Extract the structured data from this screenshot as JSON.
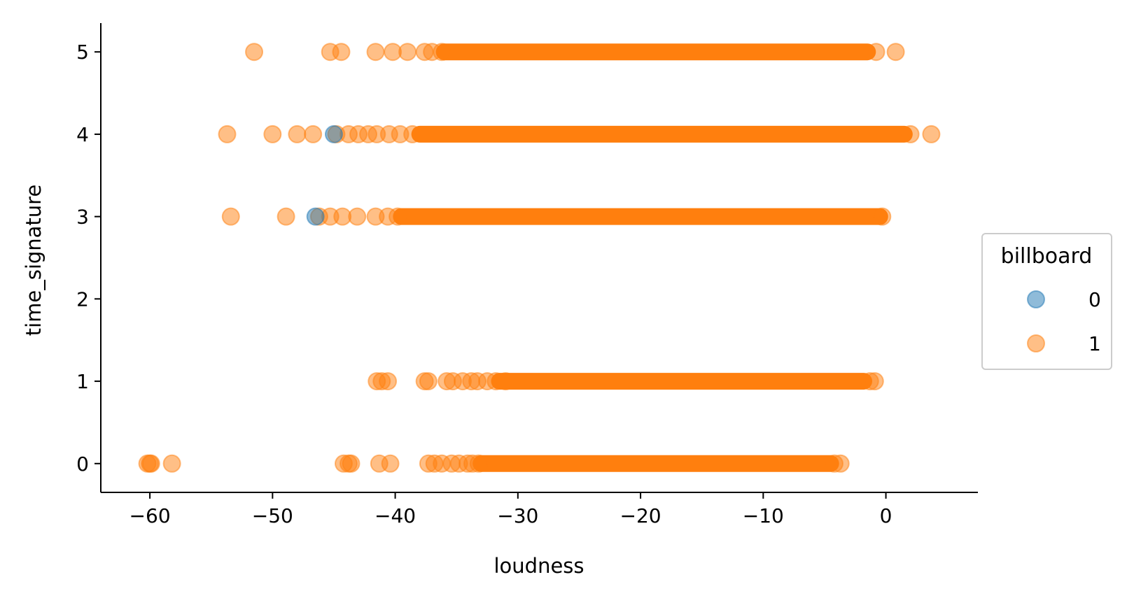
{
  "chart_data": {
    "type": "scatter",
    "xlabel": "loudness",
    "ylabel": "time_signature",
    "xlim": [
      -64,
      7.5
    ],
    "ylim": [
      -0.35,
      5.35
    ],
    "xticks": [
      -60,
      -50,
      -40,
      -30,
      -20,
      -10,
      0
    ],
    "xtick_labels": [
      "−60",
      "−50",
      "−40",
      "−30",
      "−20",
      "−10",
      "0"
    ],
    "yticks": [
      0,
      1,
      2,
      3,
      4,
      5
    ],
    "ytick_labels": [
      "0",
      "1",
      "2",
      "3",
      "4",
      "5"
    ],
    "grid": false,
    "legend": {
      "title": "billboard",
      "placement": "outside-right"
    },
    "series": [
      {
        "name": "0",
        "color": "#1f77b4",
        "points": [
          [
            -45.0,
            4
          ],
          [
            -46.5,
            3
          ]
        ]
      },
      {
        "name": "1",
        "color": "#ff7f0e",
        "points": [
          [
            -51.5,
            5
          ],
          [
            -45.3,
            5
          ],
          [
            -44.4,
            5
          ],
          [
            -41.6,
            5
          ],
          [
            -40.2,
            5
          ],
          [
            -39.0,
            5
          ],
          [
            -37.6,
            5
          ],
          [
            -37.0,
            5
          ],
          [
            -36.2,
            5
          ],
          [
            -0.8,
            5
          ],
          [
            0.8,
            5
          ],
          [
            -53.7,
            4
          ],
          [
            -50.0,
            4
          ],
          [
            -48.0,
            4
          ],
          [
            -46.7,
            4
          ],
          [
            -44.8,
            4
          ],
          [
            -43.8,
            4
          ],
          [
            -43.0,
            4
          ],
          [
            -42.2,
            4
          ],
          [
            -41.5,
            4
          ],
          [
            -40.5,
            4
          ],
          [
            -39.6,
            4
          ],
          [
            -38.6,
            4
          ],
          [
            2.0,
            4
          ],
          [
            3.7,
            4
          ],
          [
            -53.4,
            3
          ],
          [
            -48.9,
            3
          ],
          [
            -46.2,
            3
          ],
          [
            -45.3,
            3
          ],
          [
            -44.3,
            3
          ],
          [
            -43.1,
            3
          ],
          [
            -41.6,
            3
          ],
          [
            -40.6,
            3
          ],
          [
            -39.8,
            3
          ],
          [
            -0.3,
            3
          ],
          [
            -41.5,
            1
          ],
          [
            -41.1,
            1
          ],
          [
            -40.6,
            1
          ],
          [
            -37.6,
            1
          ],
          [
            -37.3,
            1
          ],
          [
            -35.8,
            1
          ],
          [
            -35.3,
            1
          ],
          [
            -34.5,
            1
          ],
          [
            -33.8,
            1
          ],
          [
            -33.3,
            1
          ],
          [
            -32.5,
            1
          ],
          [
            -31.8,
            1
          ],
          [
            -31.0,
            1
          ],
          [
            -1.3,
            1
          ],
          [
            -0.9,
            1
          ],
          [
            -60.0,
            0
          ],
          [
            -60.2,
            0
          ],
          [
            -59.9,
            0
          ],
          [
            -58.2,
            0
          ],
          [
            -44.2,
            0
          ],
          [
            -43.8,
            0
          ],
          [
            -43.6,
            0
          ],
          [
            -41.3,
            0
          ],
          [
            -40.4,
            0
          ],
          [
            -37.3,
            0
          ],
          [
            -36.8,
            0
          ],
          [
            -36.2,
            0
          ],
          [
            -35.4,
            0
          ],
          [
            -34.8,
            0
          ],
          [
            -34.1,
            0
          ],
          [
            -33.7,
            0
          ],
          [
            -33.2,
            0
          ],
          [
            -3.7,
            0
          ],
          [
            -4.2,
            0
          ]
        ],
        "bands": [
          {
            "y": 5,
            "x_start": -36.0,
            "x_end": -1.5
          },
          {
            "y": 4,
            "x_start": -38.0,
            "x_end": 1.5
          },
          {
            "y": 3,
            "x_start": -39.5,
            "x_end": -0.5
          },
          {
            "y": 1,
            "x_start": -31.5,
            "x_end": -1.8
          },
          {
            "y": 0,
            "x_start": -33.0,
            "x_end": -4.5
          }
        ]
      }
    ]
  }
}
